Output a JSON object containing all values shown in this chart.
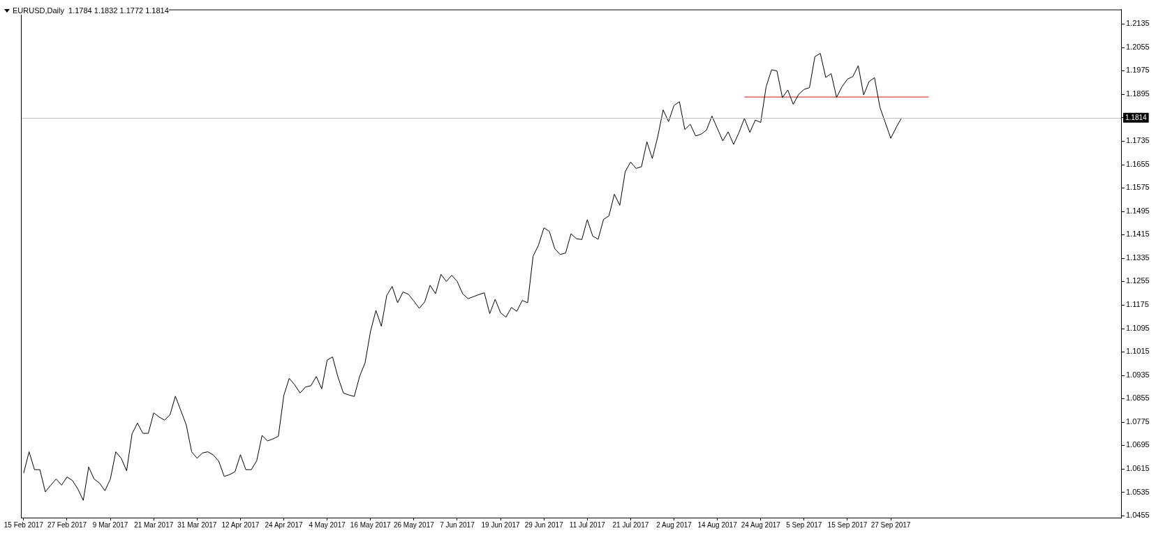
{
  "chart_data": {
    "type": "line",
    "title": "EURUSD,Daily  1.1784 1.1832 1.1772 1.1814",
    "categories": [
      "15 Feb 2017",
      null,
      null,
      null,
      null,
      null,
      null,
      null,
      "27 Feb 2017",
      null,
      null,
      null,
      null,
      null,
      null,
      null,
      "9 Mar 2017",
      null,
      null,
      null,
      null,
      null,
      null,
      null,
      "21 Mar 2017",
      null,
      null,
      null,
      null,
      null,
      null,
      null,
      "31 Mar 2017",
      null,
      null,
      null,
      null,
      null,
      null,
      null,
      "12 Apr 2017",
      null,
      null,
      null,
      null,
      null,
      null,
      null,
      "24 Apr 2017",
      null,
      null,
      null,
      null,
      null,
      null,
      null,
      "4 May 2017",
      null,
      null,
      null,
      null,
      null,
      null,
      null,
      "16 May 2017",
      null,
      null,
      null,
      null,
      null,
      null,
      null,
      "26 May 2017",
      null,
      null,
      null,
      null,
      null,
      null,
      null,
      "7 Jun 2017",
      null,
      null,
      null,
      null,
      null,
      null,
      null,
      "19 Jun 2017",
      null,
      null,
      null,
      null,
      null,
      null,
      null,
      "29 Jun 2017",
      null,
      null,
      null,
      null,
      null,
      null,
      null,
      "11 Jul 2017",
      null,
      null,
      null,
      null,
      null,
      null,
      null,
      "21 Jul 2017",
      null,
      null,
      null,
      null,
      null,
      null,
      null,
      "2 Aug 2017",
      null,
      null,
      null,
      null,
      null,
      null,
      null,
      "14 Aug 2017",
      null,
      null,
      null,
      null,
      null,
      null,
      null,
      "24 Aug 2017",
      null,
      null,
      null,
      null,
      null,
      null,
      null,
      "5 Sep 2017",
      null,
      null,
      null,
      null,
      null,
      null,
      null,
      "15 Sep 2017",
      null,
      null,
      null,
      null,
      null,
      null,
      null,
      "27 Sep 2017",
      null,
      null,
      null,
      null,
      null,
      null,
      null,
      null,
      null,
      null,
      null,
      null,
      null,
      null,
      null,
      null,
      null,
      null,
      null,
      null,
      null,
      null,
      null,
      null,
      null,
      null,
      null,
      null,
      null,
      null,
      null,
      null,
      null,
      null,
      null,
      null,
      null,
      null,
      null,
      null,
      null,
      null
    ],
    "series": [
      {
        "color": "#000000",
        "values": [
          1.06,
          1.0673,
          1.0612,
          1.0612,
          1.0536,
          1.0559,
          1.058,
          1.0559,
          1.0587,
          1.0575,
          1.0546,
          1.0507,
          1.0621,
          1.058,
          1.0566,
          1.054,
          1.058,
          1.0673,
          1.0651,
          1.0608,
          1.0734,
          1.0771,
          1.0736,
          1.0736,
          1.0806,
          1.0792,
          1.0781,
          1.0799,
          1.0863,
          1.0814,
          1.0765,
          1.0673,
          1.0651,
          1.0669,
          1.0673,
          1.0662,
          1.0641,
          1.0589,
          1.0595,
          1.0605,
          1.0663,
          1.0612,
          1.0612,
          1.0642,
          1.0729,
          1.071,
          1.0717,
          1.0726,
          1.0865,
          1.0924,
          1.0902,
          1.0874,
          1.0894,
          1.0899,
          1.093,
          1.0888,
          1.0986,
          1.0997,
          1.0928,
          1.0874,
          1.0867,
          1.0862,
          1.0931,
          1.0977,
          1.1084,
          1.1156,
          1.1102,
          1.1207,
          1.1238,
          1.1182,
          1.1219,
          1.1211,
          1.1188,
          1.1163,
          1.1185,
          1.1242,
          1.1213,
          1.1279,
          1.1255,
          1.1276,
          1.1255,
          1.1213,
          1.1196,
          1.1203,
          1.121,
          1.1216,
          1.1145,
          1.1194,
          1.1148,
          1.1133,
          1.1166,
          1.1153,
          1.119,
          1.1182,
          1.1341,
          1.1379,
          1.1438,
          1.1426,
          1.1367,
          1.1347,
          1.1352,
          1.1418,
          1.1401,
          1.1398,
          1.1466,
          1.141,
          1.1399,
          1.1467,
          1.1479,
          1.1553,
          1.1515,
          1.163,
          1.1663,
          1.1641,
          1.1647,
          1.1732,
          1.1675,
          1.1749,
          1.1841,
          1.1801,
          1.1856,
          1.1869,
          1.1774,
          1.1792,
          1.1752,
          1.1758,
          1.1772,
          1.182,
          1.1778,
          1.1735,
          1.1766,
          1.1723,
          1.1764,
          1.1812,
          1.1764,
          1.1806,
          1.1798,
          1.192,
          1.1978,
          1.1974,
          1.1883,
          1.1909,
          1.186,
          1.1894,
          1.1911,
          1.1917,
          1.2023,
          1.2034,
          1.1952,
          1.1965,
          1.1884,
          1.192,
          1.1946,
          1.1955,
          1.1992,
          1.1892,
          1.1938,
          1.1951,
          1.185,
          1.1797,
          1.1744,
          1.1781,
          1.1814,
          null,
          null,
          null,
          null,
          null,
          null,
          null,
          null,
          null,
          null,
          null,
          null,
          null,
          null,
          null,
          null,
          null,
          null,
          null,
          null,
          null,
          null,
          null,
          null,
          null,
          null,
          null,
          null,
          null,
          null,
          null,
          null,
          null,
          null,
          null,
          null,
          null,
          null,
          null,
          null
        ]
      },
      {
        "type": "line",
        "color": "#ff0000",
        "values": [
          null,
          null,
          null,
          null,
          null,
          null,
          null,
          null,
          null,
          null,
          null,
          null,
          null,
          null,
          null,
          null,
          null,
          null,
          null,
          null,
          null,
          null,
          null,
          null,
          null,
          null,
          null,
          null,
          null,
          null,
          null,
          null,
          null,
          null,
          null,
          null,
          null,
          null,
          null,
          null,
          null,
          null,
          null,
          null,
          null,
          null,
          null,
          null,
          null,
          null,
          null,
          null,
          null,
          null,
          null,
          null,
          null,
          null,
          null,
          null,
          null,
          null,
          null,
          null,
          null,
          null,
          null,
          null,
          null,
          null,
          null,
          null,
          null,
          null,
          null,
          null,
          null,
          null,
          null,
          null,
          null,
          null,
          null,
          null,
          null,
          null,
          null,
          null,
          null,
          null,
          null,
          null,
          null,
          null,
          null,
          null,
          null,
          null,
          null,
          null,
          null,
          null,
          null,
          null,
          null,
          null,
          null,
          null,
          null,
          null,
          null,
          null,
          null,
          null,
          null,
          null,
          null,
          null,
          null,
          null,
          null,
          null,
          null,
          null,
          null,
          null,
          null,
          null,
          null,
          null,
          null,
          null,
          null,
          1.1885,
          1.1885,
          1.1885,
          1.1885,
          1.1885,
          1.1885,
          1.1885,
          1.1885,
          1.1885,
          1.1885,
          1.1885,
          1.1885,
          1.1885,
          1.1885,
          1.1885,
          1.1885,
          1.1885,
          1.1885,
          1.1885,
          1.1885,
          1.1885,
          1.1885,
          1.1885,
          1.1885,
          1.1885,
          1.1885,
          1.1885,
          1.1885,
          1.1885,
          1.1885,
          1.1885,
          1.1885,
          1.1885,
          1.1885,
          1.1885,
          null,
          null,
          null,
          null,
          null,
          null,
          null,
          null,
          null,
          null,
          null,
          null,
          null,
          null,
          null,
          null,
          null,
          null,
          null,
          null,
          null,
          null,
          null,
          null,
          null,
          null,
          null,
          null,
          null,
          null,
          null,
          null,
          null,
          null,
          null
        ]
      }
    ],
    "ref_lines": [
      {
        "axis": "y",
        "value": 1.1814,
        "label": "1.1814",
        "color": "#c0c0c0"
      }
    ],
    "ylim": [
      1.0448,
      1.2184
    ],
    "yticks": [
      {
        "value": 1.0455,
        "label": "1.0455"
      },
      {
        "value": 1.0535,
        "label": "1.0535"
      },
      {
        "value": 1.0615,
        "label": "1.0615"
      },
      {
        "value": 1.0695,
        "label": "1.0695"
      },
      {
        "value": 1.0775,
        "label": "1.0775"
      },
      {
        "value": 1.0855,
        "label": "1.0855"
      },
      {
        "value": 1.0935,
        "label": "1.0935"
      },
      {
        "value": 1.1015,
        "label": "1.1015"
      },
      {
        "value": 1.1095,
        "label": "1.1095"
      },
      {
        "value": 1.1175,
        "label": "1.1175"
      },
      {
        "value": 1.1255,
        "label": "1.1255"
      },
      {
        "value": 1.1335,
        "label": "1.1335"
      },
      {
        "value": 1.1415,
        "label": "1.1415"
      },
      {
        "value": 1.1495,
        "label": "1.1495"
      },
      {
        "value": 1.1575,
        "label": "1.1575"
      },
      {
        "value": 1.1655,
        "label": "1.1655"
      },
      {
        "value": 1.1735,
        "label": "1.1735"
      },
      {
        "value": 1.1815,
        "label": null
      },
      {
        "value": 1.1895,
        "label": "1.1895"
      },
      {
        "value": 1.1975,
        "label": "1.1975"
      },
      {
        "value": 1.2055,
        "label": "1.2055"
      },
      {
        "value": 1.2135,
        "label": "1.2135"
      }
    ],
    "grid": false,
    "legend": false,
    "marker": "none",
    "line_style": "solid"
  }
}
